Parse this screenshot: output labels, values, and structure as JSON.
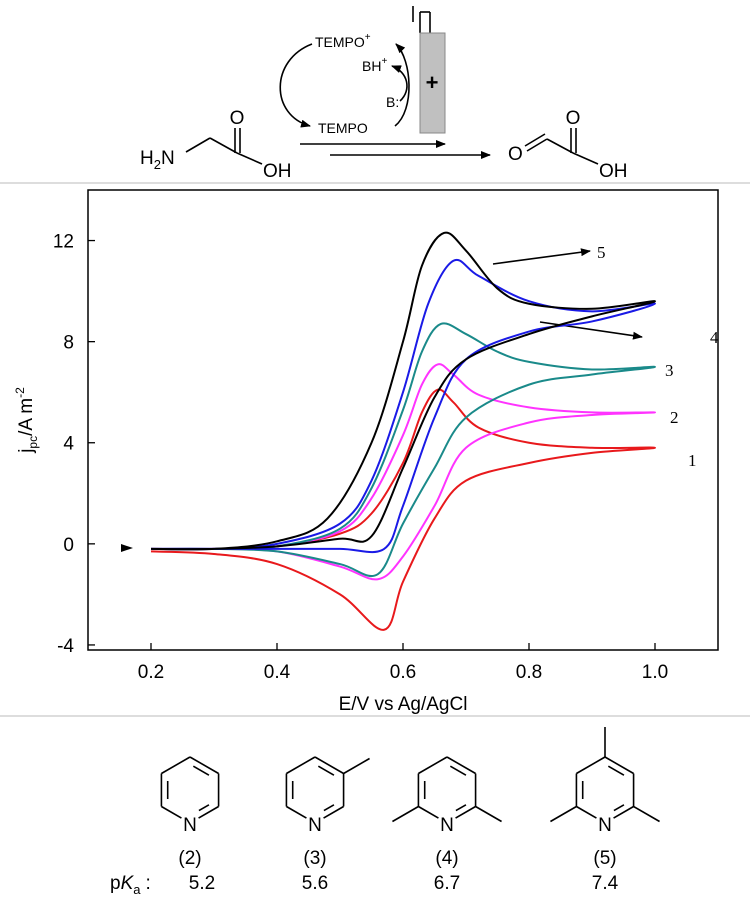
{
  "scheme": {
    "oxidized": {
      "text": "TEMPO",
      "charge": "+"
    },
    "acid": {
      "text": "BH",
      "charge": "+"
    },
    "base": "B:",
    "electrode": "+",
    "reduced": "TEMPO",
    "reactant": {
      "h": "H",
      "sub": "2",
      "n": "N",
      "o": "O",
      "oh": "OH"
    },
    "product": {
      "o1": "O",
      "o2": "O",
      "oh": "OH"
    }
  },
  "chart_data": {
    "type": "line",
    "xlabel": "E/V vs Ag/AgCl",
    "ylabel": {
      "main": "j",
      "sub": "pc",
      "unit": "/A m",
      "sup": "-2"
    },
    "xlim": [
      0.1,
      1.1
    ],
    "ylim": [
      -4.2,
      14
    ],
    "xticks": [
      0.2,
      0.4,
      0.6,
      0.8,
      {
        "value": 1,
        "label": "1.0"
      }
    ],
    "yticks": [
      -4,
      0,
      4,
      8,
      12
    ],
    "grid": false,
    "series": [
      {
        "name": "1",
        "color": "#e8191c",
        "x": [
          0.2,
          0.3,
          0.4,
          0.5,
          0.55,
          0.6,
          0.63,
          0.655,
          0.68,
          0.72,
          0.8,
          0.9,
          1.0,
          0.9,
          0.8,
          0.7,
          0.65,
          0.6,
          0.57,
          0.5,
          0.4,
          0.3,
          0.2
        ],
        "values": [
          -0.2,
          -0.2,
          -0.1,
          0.4,
          1.2,
          3.2,
          5.2,
          6.1,
          5.6,
          4.6,
          4.0,
          3.8,
          3.8,
          3.6,
          3.2,
          2.5,
          1.0,
          -1.5,
          -3.4,
          -2.0,
          -0.8,
          -0.4,
          -0.3
        ]
      },
      {
        "name": "2",
        "color": "#ff33ff",
        "x": [
          0.2,
          0.3,
          0.4,
          0.5,
          0.55,
          0.6,
          0.63,
          0.655,
          0.68,
          0.72,
          0.8,
          0.9,
          1.0,
          0.9,
          0.8,
          0.7,
          0.65,
          0.6,
          0.56,
          0.5,
          0.4,
          0.3,
          0.2
        ],
        "values": [
          -0.2,
          -0.2,
          -0.1,
          0.5,
          1.8,
          4.3,
          6.3,
          7.1,
          6.7,
          5.9,
          5.4,
          5.2,
          5.2,
          5.1,
          4.8,
          3.8,
          1.5,
          -0.5,
          -1.4,
          -0.9,
          -0.3,
          -0.2,
          -0.2
        ]
      },
      {
        "name": "3",
        "color": "#1a8a8a",
        "x": [
          0.2,
          0.3,
          0.4,
          0.5,
          0.55,
          0.6,
          0.63,
          0.66,
          0.7,
          0.75,
          0.8,
          0.9,
          1.0,
          0.9,
          0.8,
          0.7,
          0.65,
          0.6,
          0.56,
          0.5,
          0.4,
          0.3,
          0.2
        ],
        "values": [
          -0.2,
          -0.2,
          -0.1,
          0.6,
          2.2,
          5.3,
          7.6,
          8.7,
          8.3,
          7.6,
          7.2,
          6.9,
          7.0,
          6.7,
          6.3,
          5.0,
          3.0,
          0.8,
          -1.2,
          -0.8,
          -0.3,
          -0.2,
          -0.2
        ]
      },
      {
        "name": "4",
        "color": "#1a1ae6",
        "x": [
          0.2,
          0.3,
          0.4,
          0.5,
          0.55,
          0.6,
          0.64,
          0.68,
          0.72,
          0.8,
          0.9,
          1.0,
          0.9,
          0.8,
          0.7,
          0.65,
          0.6,
          0.57,
          0.5,
          0.4,
          0.3,
          0.2
        ],
        "values": [
          -0.2,
          -0.2,
          0.0,
          0.8,
          2.5,
          6.0,
          9.5,
          11.2,
          10.6,
          9.6,
          9.2,
          9.5,
          8.8,
          8.4,
          7.3,
          5.0,
          1.5,
          -0.2,
          -0.2,
          -0.2,
          -0.2,
          -0.2
        ]
      },
      {
        "name": "5",
        "color": "#000000",
        "x": [
          0.2,
          0.3,
          0.4,
          0.48,
          0.55,
          0.6,
          0.63,
          0.665,
          0.7,
          0.75,
          0.8,
          0.9,
          1.0,
          0.9,
          0.8,
          0.7,
          0.65,
          0.6,
          0.55,
          0.5,
          0.4,
          0.3,
          0.2
        ],
        "values": [
          -0.2,
          -0.2,
          0.1,
          1.0,
          4.0,
          8.0,
          11.0,
          12.3,
          11.6,
          10.1,
          9.5,
          9.3,
          9.6,
          9.0,
          8.3,
          7.3,
          5.8,
          3.0,
          0.3,
          0.2,
          -0.1,
          -0.2,
          -0.2
        ]
      }
    ]
  },
  "bases": {
    "prefix": {
      "p": "p",
      "k": "K",
      "a": "a",
      "sep": ":"
    },
    "items": [
      {
        "label": "(2)",
        "atom": "N",
        "pka": 5.2
      },
      {
        "label": "(3)",
        "atom": "N",
        "pka": 5.6
      },
      {
        "label": "(4)",
        "atom": "N",
        "pka": 6.7
      },
      {
        "label": "(5)",
        "atom": "N",
        "pka": 7.4
      }
    ]
  }
}
